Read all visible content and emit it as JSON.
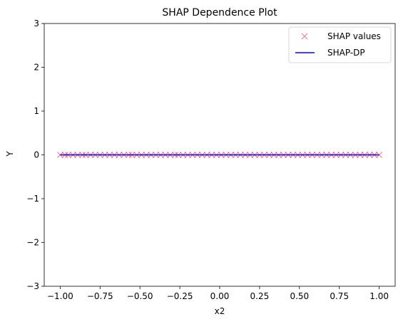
{
  "chart_data": {
    "type": "scatter",
    "title": "SHAP Dependence Plot",
    "xlabel": "x2",
    "ylabel": "Y",
    "xlim": [
      -1.1,
      1.1
    ],
    "ylim": [
      -3,
      3
    ],
    "grid": false,
    "legend_position": "top-right",
    "xticks": [
      -1.0,
      -0.75,
      -0.5,
      -0.25,
      0.0,
      0.25,
      0.5,
      0.75,
      1.0
    ],
    "xtick_labels": [
      "−1.00",
      "−0.75",
      "−0.50",
      "−0.25",
      "0.00",
      "0.25",
      "0.50",
      "0.75",
      "1.00"
    ],
    "yticks": [
      -3,
      -2,
      -1,
      0,
      1,
      2,
      3
    ],
    "ytick_labels": [
      "−3",
      "−2",
      "−1",
      "0",
      "1",
      "2",
      "3"
    ],
    "series": [
      {
        "name": "SHAP values",
        "kind": "scatter",
        "marker": "x",
        "color": "#ff0000",
        "alpha": 0.5,
        "x": [
          -1.0,
          -0.97,
          -0.95,
          -0.92,
          -0.89,
          -0.86,
          -0.84,
          -0.81,
          -0.78,
          -0.75,
          -0.72,
          -0.69,
          -0.66,
          -0.63,
          -0.6,
          -0.57,
          -0.55,
          -0.52,
          -0.49,
          -0.46,
          -0.43,
          -0.4,
          -0.37,
          -0.34,
          -0.31,
          -0.28,
          -0.26,
          -0.23,
          -0.2,
          -0.17,
          -0.14,
          -0.11,
          -0.08,
          -0.05,
          -0.02,
          0.01,
          0.04,
          0.07,
          0.1,
          0.13,
          0.16,
          0.19,
          0.22,
          0.25,
          0.28,
          0.31,
          0.34,
          0.37,
          0.4,
          0.43,
          0.46,
          0.49,
          0.52,
          0.55,
          0.58,
          0.61,
          0.64,
          0.67,
          0.7,
          0.73,
          0.76,
          0.79,
          0.82,
          0.85,
          0.88,
          0.91,
          0.94,
          0.97,
          1.0
        ],
        "y": [
          0,
          0,
          0,
          0,
          0,
          0,
          0,
          0,
          0,
          0,
          0,
          0,
          0,
          0,
          0,
          0,
          0,
          0,
          0,
          0,
          0,
          0,
          0,
          0,
          0,
          0,
          0,
          0,
          0,
          0,
          0,
          0,
          0,
          0,
          0,
          0,
          0,
          0,
          0,
          0,
          0,
          0,
          0,
          0,
          0,
          0,
          0,
          0,
          0,
          0,
          0,
          0,
          0,
          0,
          0,
          0,
          0,
          0,
          0,
          0,
          0,
          0,
          0,
          0,
          0,
          0,
          0,
          0,
          0
        ]
      },
      {
        "name": "SHAP-DP",
        "kind": "line",
        "color": "#0000ff",
        "x": [
          -1.0,
          1.0
        ],
        "y": [
          0,
          0
        ]
      }
    ]
  }
}
